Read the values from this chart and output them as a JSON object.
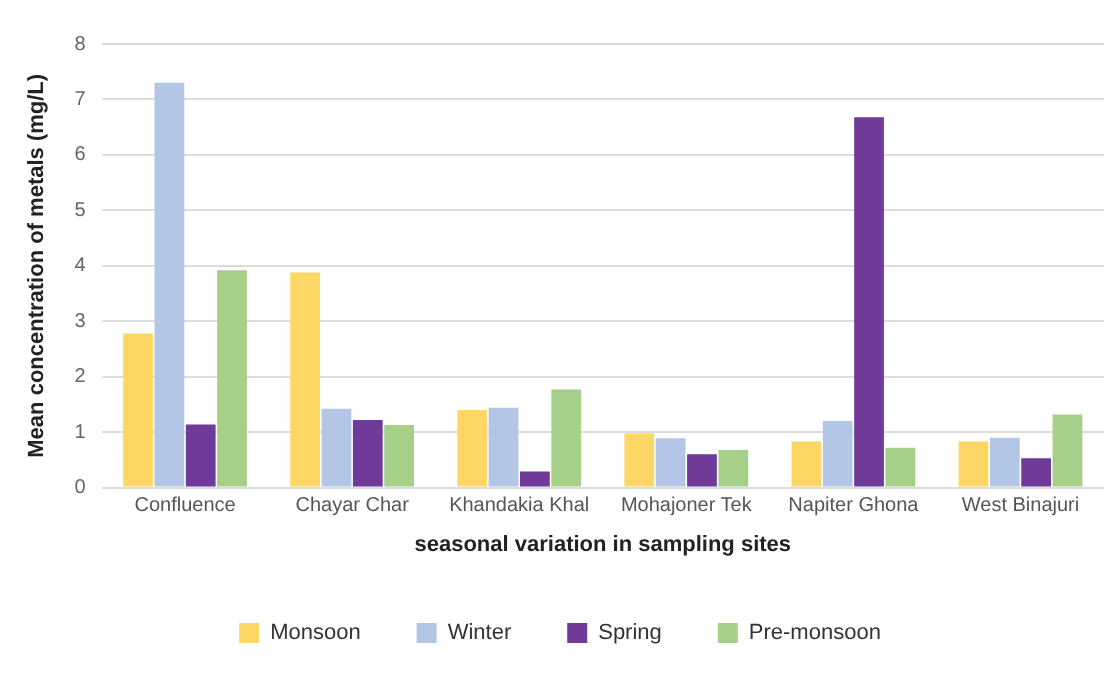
{
  "chart_data": {
    "type": "bar",
    "xlabel": "seasonal variation in sampling sites",
    "ylabel": "Mean concentration of metals (mg/L)",
    "categories": [
      "Confluence",
      "Chayar Char",
      "Khandakia Khal",
      "Mohajoner Tek",
      "Napiter Ghona",
      "West Binajuri"
    ],
    "series": [
      {
        "name": "Monsoon",
        "color": "#fdd766",
        "values": [
          2.78,
          3.88,
          1.4,
          0.98,
          0.83,
          0.83
        ]
      },
      {
        "name": "Winter",
        "color": "#b3c6e6",
        "values": [
          7.3,
          1.42,
          1.44,
          0.89,
          1.2,
          0.9
        ]
      },
      {
        "name": "Spring",
        "color": "#6f3a98",
        "values": [
          1.14,
          1.22,
          0.29,
          0.6,
          6.68,
          0.53
        ]
      },
      {
        "name": "Pre-monsoon",
        "color": "#a6cf8a",
        "values": [
          3.92,
          1.13,
          1.77,
          0.68,
          0.72,
          1.32
        ]
      }
    ],
    "ylim": [
      0,
      8
    ],
    "yticks": [
      0,
      1,
      2,
      3,
      4,
      5,
      6,
      7,
      8
    ],
    "grid": "y",
    "legend": "bottom"
  }
}
